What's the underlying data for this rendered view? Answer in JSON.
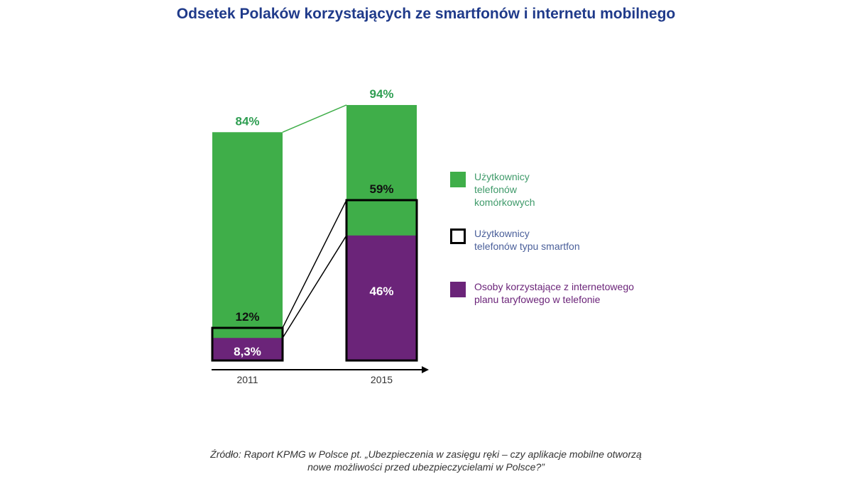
{
  "title": "Odsetek Polaków korzystających ze smartfonów i internetu mobilnego",
  "chart_data": {
    "type": "bar",
    "title": "Odsetek Polaków korzystających ze smartfonów i internetu mobilnego",
    "categories": [
      "2011",
      "2015"
    ],
    "series": [
      {
        "name": "Użytkownicy telefonów komórkowych",
        "values": [
          84,
          94
        ],
        "labels": [
          "84%",
          "94%"
        ],
        "color": "#3fae49"
      },
      {
        "name": "Użytkownicy telefonów typu smartfon",
        "values": [
          12,
          59
        ],
        "labels": [
          "12%",
          "59%"
        ],
        "color": "#000000"
      },
      {
        "name": "Osoby korzystające z internetowego planu taryfowego w telefonie",
        "values": [
          8.3,
          46
        ],
        "labels": [
          "8,3%",
          "46%"
        ],
        "color": "#6b2479"
      }
    ],
    "ylim": [
      0,
      100
    ],
    "legend_position": "right"
  },
  "legend": [
    {
      "label": "Użytkownicy\ntelefonów\nkomórkowych",
      "color": "#3fae49",
      "text_color": "#3f9a6a"
    },
    {
      "label": "Użytkownicy\ntelefonów typu smartfon",
      "color": "#ffffff",
      "text_color": "#4a5f9a"
    },
    {
      "label": "Osoby korzystające z internetowego\nplanu taryfowego w telefonie",
      "color": "#6b2479",
      "text_color": "#6b2479"
    }
  ],
  "source": "Źródło: Raport KPMG w Polsce pt. „Ubezpieczenia w zasięgu ręki – czy aplikacje mobilne otworzą\nnowe możliwości przed ubezpieczycielami w Polsce?”"
}
